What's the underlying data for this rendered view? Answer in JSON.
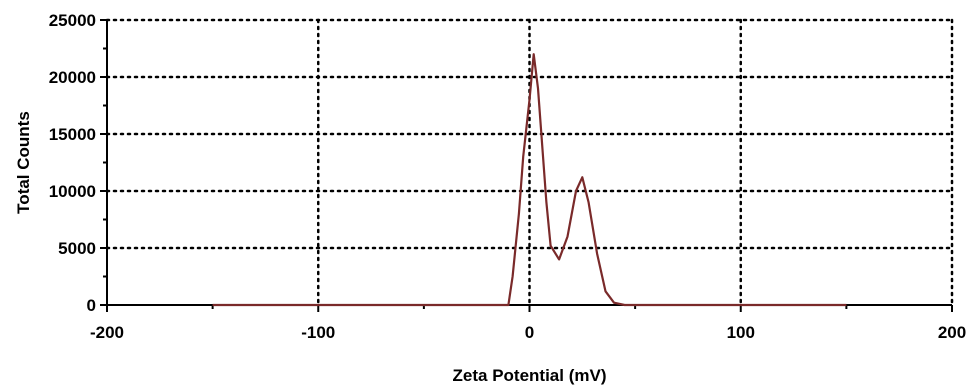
{
  "chart_data": {
    "type": "line",
    "title": "",
    "xlabel": "Zeta Potential (mV)",
    "ylabel": "Total Counts",
    "xlim": [
      -200,
      200
    ],
    "ylim": [
      0,
      25000
    ],
    "x_ticks": [
      -200,
      -100,
      0,
      100,
      200
    ],
    "y_ticks": [
      0,
      5000,
      10000,
      15000,
      20000,
      25000
    ],
    "x_tick_labels": [
      "-200",
      "-100",
      "0",
      "100",
      "200"
    ],
    "y_tick_labels": [
      "0",
      "5000",
      "10000",
      "15000",
      "20000",
      "25000"
    ],
    "grid": true,
    "legend": "none",
    "series_color": "#7a2a2a",
    "series": [
      {
        "x": [
          -150,
          -100,
          -50,
          -10,
          -8,
          -5,
          -3,
          0,
          2,
          4,
          6,
          8,
          10,
          14,
          18,
          22,
          25,
          28,
          32,
          36,
          40,
          45,
          60,
          100,
          150
        ],
        "y": [
          0,
          0,
          0,
          0,
          2500,
          8000,
          13000,
          18000,
          22000,
          19000,
          14000,
          9000,
          5200,
          4000,
          6000,
          10000,
          11200,
          9000,
          4500,
          1200,
          200,
          0,
          0,
          0,
          0
        ]
      }
    ]
  }
}
